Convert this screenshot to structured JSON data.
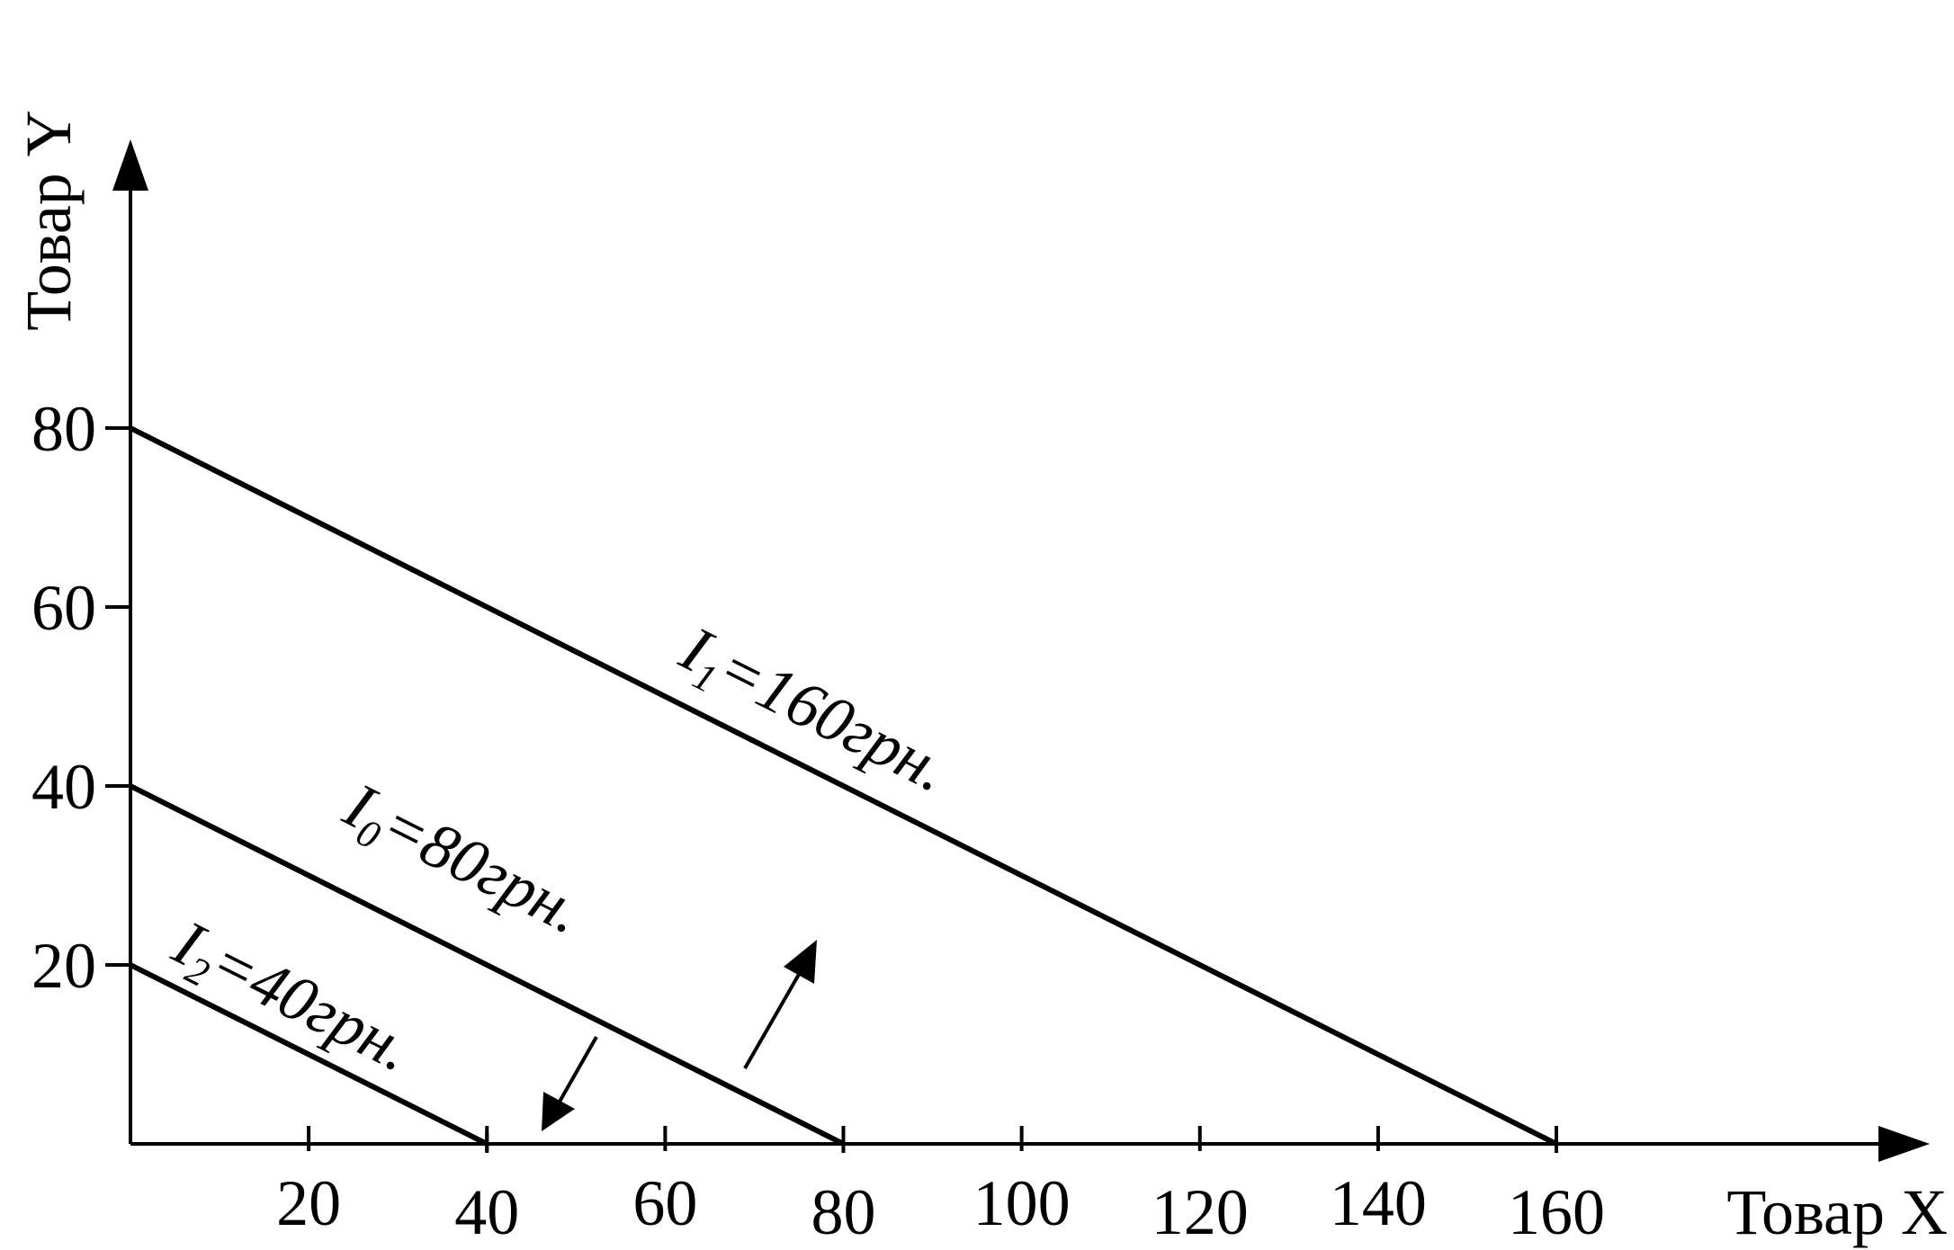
{
  "chart_data": {
    "type": "line",
    "title": "",
    "xlabel": "Товар X",
    "ylabel": "Товар Y",
    "x_ticks": [
      "20",
      "40",
      "60",
      "80",
      "100",
      "120",
      "140",
      "160"
    ],
    "y_ticks": [
      "20",
      "40",
      "60",
      "80"
    ],
    "xlim": [
      0,
      205
    ],
    "ylim": [
      0,
      112
    ],
    "grid": false,
    "legend": "none",
    "series": [
      {
        "name": "I1=160грн.",
        "label_main": "I",
        "label_sub": "1",
        "label_rest": "=160грн.",
        "points": [
          [
            0,
            80
          ],
          [
            160,
            0
          ]
        ]
      },
      {
        "name": "I0=80грн.",
        "label_main": "I",
        "label_sub": "0",
        "label_rest": "=80грн.",
        "points": [
          [
            0,
            40
          ],
          [
            80,
            0
          ]
        ]
      },
      {
        "name": "I2=40грн.",
        "label_main": "I",
        "label_sub": "2",
        "label_rest": "=40грн.",
        "points": [
          [
            0,
            20
          ],
          [
            40,
            0
          ]
        ]
      }
    ],
    "annotations": [
      {
        "type": "arrow",
        "direction": "outward",
        "meaning": "shift from I0 to I1"
      },
      {
        "type": "arrow",
        "direction": "inward",
        "meaning": "shift from I0 to I2"
      }
    ],
    "colors": {
      "line": "#000000",
      "background": "#ffffff"
    }
  }
}
